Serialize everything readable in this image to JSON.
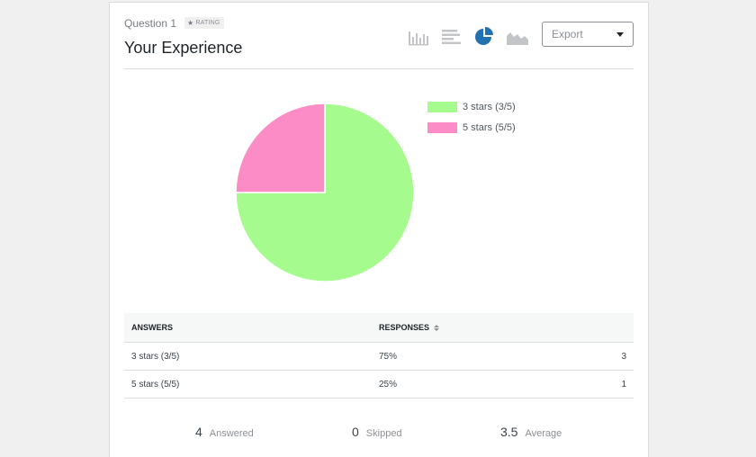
{
  "question": {
    "label": "Question 1",
    "badge": "RATING",
    "title": "Your Experience"
  },
  "toolbar": {
    "chart_types": [
      "vertical-bar",
      "horizontal-bar",
      "pie",
      "area"
    ],
    "active": "pie",
    "export_label": "Export"
  },
  "colors": {
    "slice_3": "#a6fb8f",
    "slice_5": "#fb8cc5",
    "active_icon": "#2271b1",
    "inactive_icon": "#c3c4c7"
  },
  "chart_data": {
    "type": "pie",
    "categories": [
      "3 stars (3/5)",
      "5 stars (5/5)"
    ],
    "values": [
      75,
      25
    ],
    "legend": "right"
  },
  "table": {
    "headers": {
      "answers": "ANSWERS",
      "responses": "RESPONSES"
    },
    "rows": [
      {
        "answer": "3 stars (3/5)",
        "percent": "75%",
        "count": "3"
      },
      {
        "answer": "5 stars (5/5)",
        "percent": "25%",
        "count": "1"
      }
    ]
  },
  "stats": {
    "answered": {
      "value": "4",
      "label": "Answered"
    },
    "skipped": {
      "value": "0",
      "label": "Skipped"
    },
    "average": {
      "value": "3.5",
      "label": "Average"
    }
  }
}
